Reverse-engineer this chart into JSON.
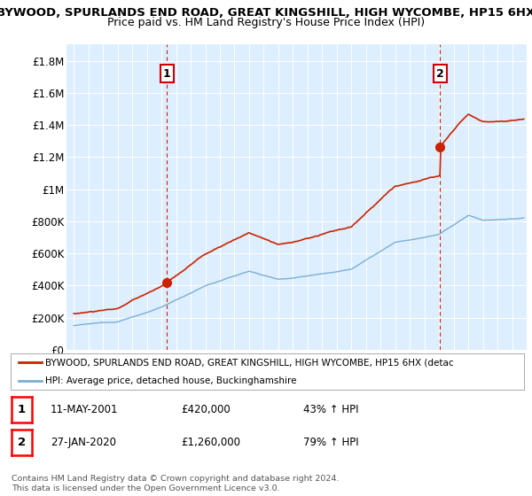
{
  "title1": "BYWOOD, SPURLANDS END ROAD, GREAT KINGSHILL, HIGH WYCOMBE, HP15 6HX",
  "title2": "Price paid vs. HM Land Registry's House Price Index (HPI)",
  "ytick_values": [
    0,
    200000,
    400000,
    600000,
    800000,
    1000000,
    1200000,
    1400000,
    1600000,
    1800000
  ],
  "ylim": [
    0,
    1900000
  ],
  "xlim_left": 1994.5,
  "xlim_right": 2026.0,
  "sale1_date": 2001.36,
  "sale1_price": 420000,
  "sale1_label": "1",
  "sale2_date": 2020.07,
  "sale2_price": 1260000,
  "sale2_label": "2",
  "legend_line1": "BYWOOD, SPURLANDS END ROAD, GREAT KINGSHILL, HIGH WYCOMBE, HP15 6HX (detac",
  "legend_line2": "HPI: Average price, detached house, Buckinghamshire",
  "table_row1": [
    "1",
    "11-MAY-2001",
    "£420,000",
    "43% ↑ HPI"
  ],
  "table_row2": [
    "2",
    "27-JAN-2020",
    "£1,260,000",
    "79% ↑ HPI"
  ],
  "footer1": "Contains HM Land Registry data © Crown copyright and database right 2024.",
  "footer2": "This data is licensed under the Open Government Licence v3.0.",
  "hpi_color": "#7bafd4",
  "sale_color": "#cc2200",
  "dashed_color": "#cc2200",
  "plot_bg_color": "#ddeeff",
  "background_color": "#ffffff",
  "grid_color": "#ffffff",
  "label_box_color": "#cc0000"
}
